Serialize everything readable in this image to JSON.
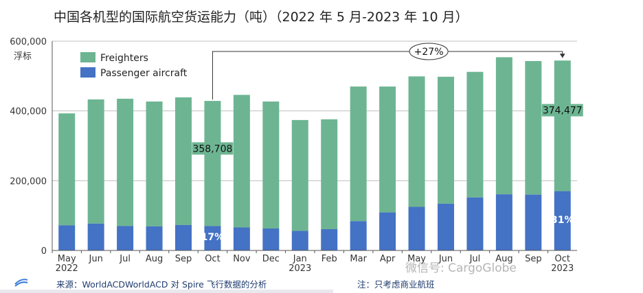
{
  "title": "中国各机型的国际航空货运能力（吨）（2022 年 5 月-2023 年 10 月）",
  "source": "来源：WorldACDWorldACD 对 Spire 飞行数据的分析",
  "note": "注：只考虑商业航班",
  "watermark": "微信号: CargoGlobe",
  "colors": {
    "freighters": "#6db592",
    "passenger": "#4472c4",
    "grid": "#bfbfbf",
    "axis": "#555555"
  },
  "chart_data": {
    "type": "bar",
    "stacked": true,
    "categories": [
      "May",
      "Jun",
      "Jul",
      "Aug",
      "Sep",
      "Oct",
      "Nov",
      "Dec",
      "Jan",
      "Feb",
      "Mar",
      "Apr",
      "May",
      "Jun",
      "Jul",
      "Aug",
      "Sep",
      "Oct"
    ],
    "year_labels": [
      "2022",
      "",
      "",
      "",
      "",
      "",
      "",
      "",
      "2023",
      "",
      "",
      "",
      "",
      "",
      "",
      "",
      "",
      "2023"
    ],
    "ylabel": "浮标",
    "ylim": [
      0,
      600000
    ],
    "yticks": [
      0,
      200000,
      400000,
      600000
    ],
    "ytick_labels": [
      "0",
      "200,000",
      "400,000",
      "600,000"
    ],
    "legend": {
      "position": "top-left"
    },
    "series": [
      {
        "name": "Passenger aircraft",
        "values": [
          72000,
          77000,
          70000,
          69000,
          73000,
          70000,
          66000,
          63000,
          56000,
          61000,
          84000,
          109000,
          125000,
          134000,
          152000,
          161000,
          160000,
          170000
        ]
      },
      {
        "name": "Freighters",
        "values": [
          321000,
          356000,
          365000,
          358000,
          366000,
          358708,
          380000,
          364000,
          318000,
          315000,
          386000,
          361000,
          374000,
          364000,
          360000,
          393000,
          383000,
          374477
        ]
      }
    ],
    "annotations": [
      {
        "text": "358,708",
        "category_index": 5,
        "kind": "freighter-value"
      },
      {
        "text": "374,477",
        "category_index": 17,
        "kind": "freighter-value"
      },
      {
        "text": "17%",
        "category_index": 5,
        "kind": "passenger-share"
      },
      {
        "text": "31%",
        "category_index": 17,
        "kind": "passenger-share"
      },
      {
        "text": "+27%",
        "from_index": 5,
        "to_index": 17,
        "kind": "growth"
      }
    ]
  }
}
